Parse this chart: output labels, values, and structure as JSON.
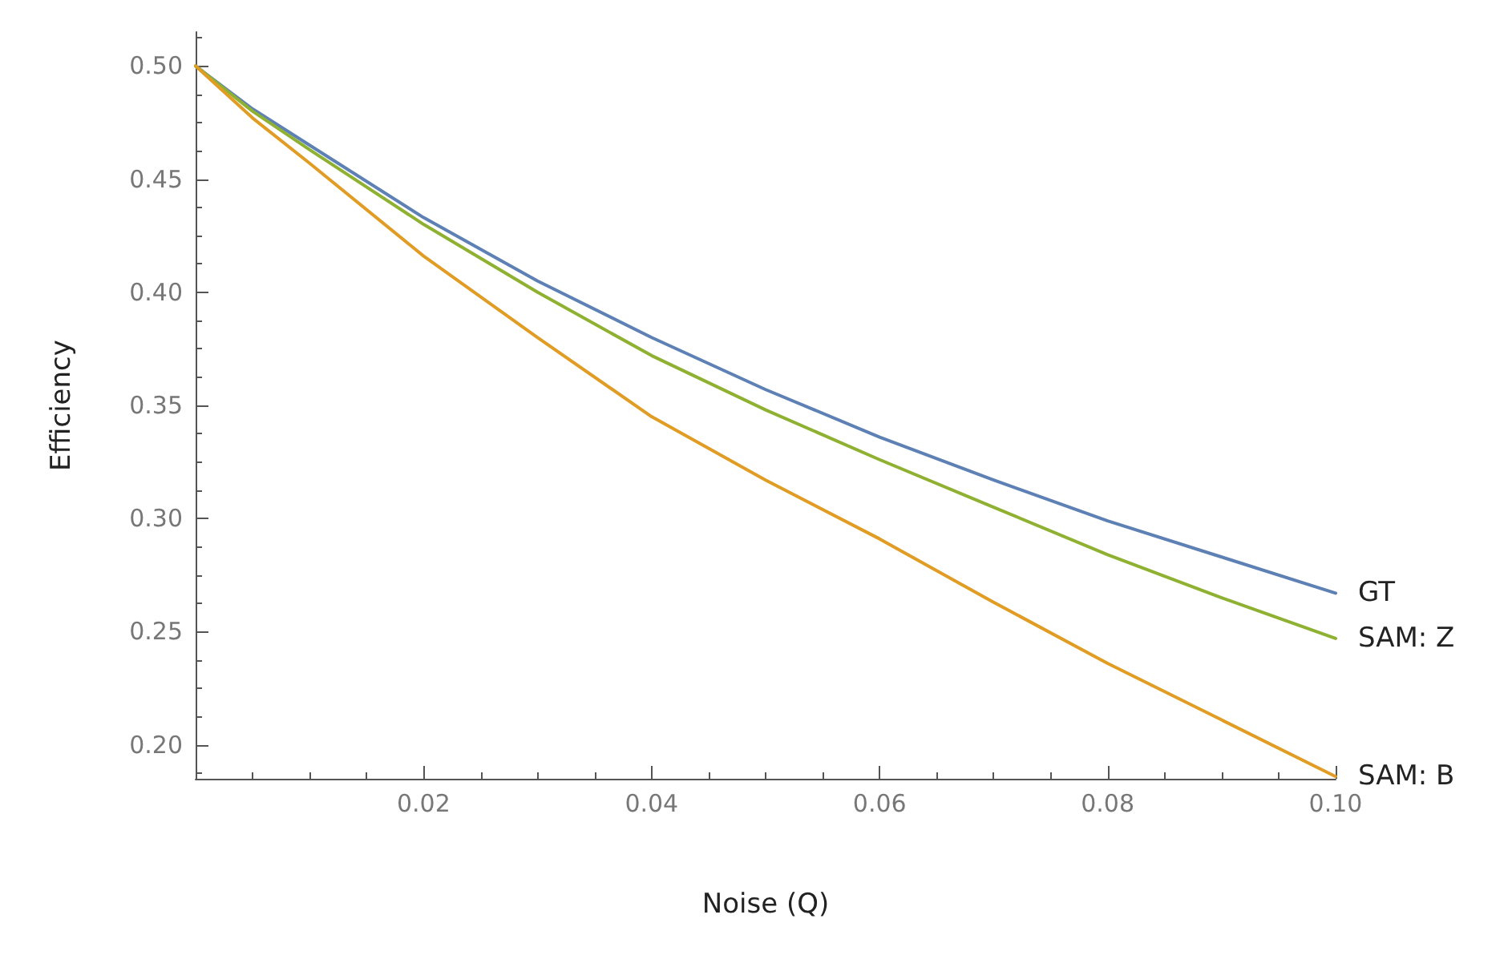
{
  "chart_data": {
    "type": "line",
    "xlabel": "Noise (Q)",
    "ylabel": "Efficiency",
    "x": [
      0,
      0.005,
      0.01,
      0.02,
      0.03,
      0.04,
      0.05,
      0.06,
      0.07,
      0.08,
      0.09,
      0.1
    ],
    "series": [
      {
        "name": "GT",
        "color": "#5e81b5",
        "values": [
          0.5,
          0.481,
          0.465,
          0.433,
          0.405,
          0.38,
          0.357,
          0.336,
          0.317,
          0.299,
          0.283,
          0.267
        ]
      },
      {
        "name": "SAM: Z",
        "color": "#8fb131",
        "values": [
          0.5,
          0.48,
          0.463,
          0.43,
          0.4,
          0.372,
          0.348,
          0.326,
          0.305,
          0.284,
          0.265,
          0.247
        ]
      },
      {
        "name": "SAM: B",
        "color": "#e19c24",
        "values": [
          0.5,
          0.477,
          0.457,
          0.416,
          0.38,
          0.345,
          0.317,
          0.291,
          0.263,
          0.236,
          0.211,
          0.186
        ]
      }
    ],
    "xlim": [
      0,
      0.1
    ],
    "ylim": [
      0.185,
      0.515
    ],
    "xticks": [
      {
        "value": 0.02,
        "label": "0.02"
      },
      {
        "value": 0.04,
        "label": "0.04"
      },
      {
        "value": 0.06,
        "label": "0.06"
      },
      {
        "value": 0.08,
        "label": "0.08"
      },
      {
        "value": 0.1,
        "label": "0.10"
      }
    ],
    "yticks": [
      {
        "value": 0.2,
        "label": "0.20"
      },
      {
        "value": 0.25,
        "label": "0.25"
      },
      {
        "value": 0.3,
        "label": "0.30"
      },
      {
        "value": 0.35,
        "label": "0.35"
      },
      {
        "value": 0.4,
        "label": "0.40"
      },
      {
        "value": 0.45,
        "label": "0.45"
      },
      {
        "value": 0.5,
        "label": "0.50"
      }
    ],
    "grid": false,
    "legend": false,
    "marker": "none",
    "line_style": "solid"
  }
}
